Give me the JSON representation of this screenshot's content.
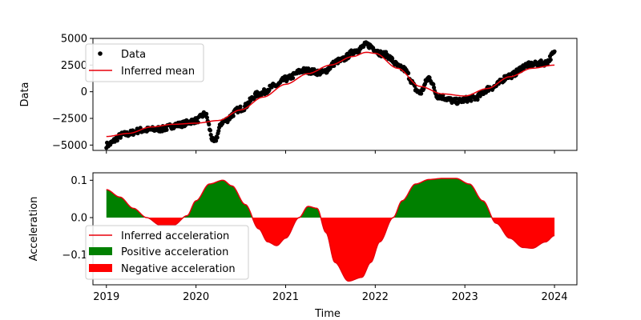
{
  "chart_data": [
    {
      "type": "line",
      "panel": "top",
      "xlabel": "",
      "ylabel": "Data",
      "ylim": [
        -5500,
        5000
      ],
      "yticks": [
        -5000,
        -2500,
        0,
        2500,
        5000
      ],
      "ytick_labels": [
        "−5000",
        "−2500",
        "0",
        "2500",
        "5000"
      ],
      "legend": {
        "placement": "upper-left",
        "entries": [
          "Data",
          "Inferred mean"
        ]
      },
      "colors": {
        "data": "#000000",
        "mean": "#e8000b"
      },
      "series": [
        {
          "name": "Data",
          "style": "points",
          "x": [
            2019.0,
            2019.2,
            2019.4,
            2019.6,
            2019.8,
            2020.0,
            2020.1,
            2020.2,
            2020.3,
            2020.5,
            2020.7,
            2020.9,
            2021.0,
            2021.2,
            2021.4,
            2021.6,
            2021.8,
            2021.9,
            2022.1,
            2022.3,
            2022.5,
            2022.6,
            2022.7,
            2022.9,
            2023.1,
            2023.3,
            2023.5,
            2023.7,
            2023.9,
            2024.0
          ],
          "values": [
            -5000,
            -4000,
            -3600,
            -3500,
            -3100,
            -2700,
            -2100,
            -4700,
            -2800,
            -1600,
            -200,
            600,
            1200,
            2000,
            1800,
            2900,
            3900,
            4400,
            3500,
            2200,
            -100,
            1300,
            -400,
            -900,
            -600,
            400,
            1500,
            2500,
            2700,
            3600
          ]
        },
        {
          "name": "Inferred mean",
          "style": "line",
          "x": [
            2019.0,
            2019.25,
            2019.5,
            2019.75,
            2020.0,
            2020.25,
            2020.5,
            2020.75,
            2021.0,
            2021.25,
            2021.5,
            2021.75,
            2021.9,
            2022.0,
            2022.25,
            2022.5,
            2022.75,
            2023.0,
            2023.25,
            2023.5,
            2023.75,
            2024.0
          ],
          "values": [
            -4200,
            -3900,
            -3300,
            -3050,
            -2950,
            -2700,
            -1700,
            -500,
            700,
            1700,
            2500,
            3300,
            3700,
            3600,
            2200,
            500,
            -200,
            -400,
            300,
            1400,
            2200,
            2500
          ]
        }
      ]
    },
    {
      "type": "area",
      "panel": "bottom",
      "xlabel": "Time",
      "ylabel": "Acceleration",
      "ylim": [
        -0.18,
        0.12
      ],
      "xlim": [
        2018.85,
        2024.25
      ],
      "yticks": [
        -0.1,
        0.0,
        0.1
      ],
      "ytick_labels": [
        "−0.1",
        "0.0",
        "0.1"
      ],
      "xticks": [
        2019,
        2020,
        2021,
        2022,
        2023,
        2024
      ],
      "xtick_labels": [
        "2019",
        "2020",
        "2021",
        "2022",
        "2023",
        "2024"
      ],
      "legend": {
        "placement": "lower-left",
        "entries": [
          "Inferred acceleration",
          "Positive acceleration",
          "Negative acceleration"
        ]
      },
      "colors": {
        "line": "#e8000b",
        "positive": "#008000",
        "negative": "#ff0000"
      },
      "series": [
        {
          "name": "Inferred acceleration",
          "x": [
            2019.0,
            2019.15,
            2019.3,
            2019.45,
            2019.6,
            2019.75,
            2019.9,
            2020.0,
            2020.15,
            2020.3,
            2020.4,
            2020.55,
            2020.7,
            2020.8,
            2020.9,
            2021.0,
            2021.15,
            2021.25,
            2021.35,
            2021.45,
            2021.55,
            2021.7,
            2021.85,
            2021.95,
            2022.05,
            2022.2,
            2022.3,
            2022.45,
            2022.6,
            2022.75,
            2022.9,
            2023.05,
            2023.2,
            2023.35,
            2023.5,
            2023.65,
            2023.75,
            2023.9,
            2024.0
          ],
          "values": [
            0.075,
            0.055,
            0.025,
            0.0,
            -0.02,
            -0.02,
            0.005,
            0.045,
            0.09,
            0.1,
            0.085,
            0.035,
            -0.03,
            -0.065,
            -0.075,
            -0.055,
            0.0,
            0.03,
            0.025,
            -0.04,
            -0.12,
            -0.17,
            -0.16,
            -0.12,
            -0.065,
            0.0,
            0.045,
            0.09,
            0.102,
            0.105,
            0.105,
            0.09,
            0.045,
            -0.015,
            -0.055,
            -0.08,
            -0.082,
            -0.065,
            -0.048
          ]
        }
      ]
    }
  ],
  "shared_x_range": [
    2018.85,
    2024.25
  ]
}
